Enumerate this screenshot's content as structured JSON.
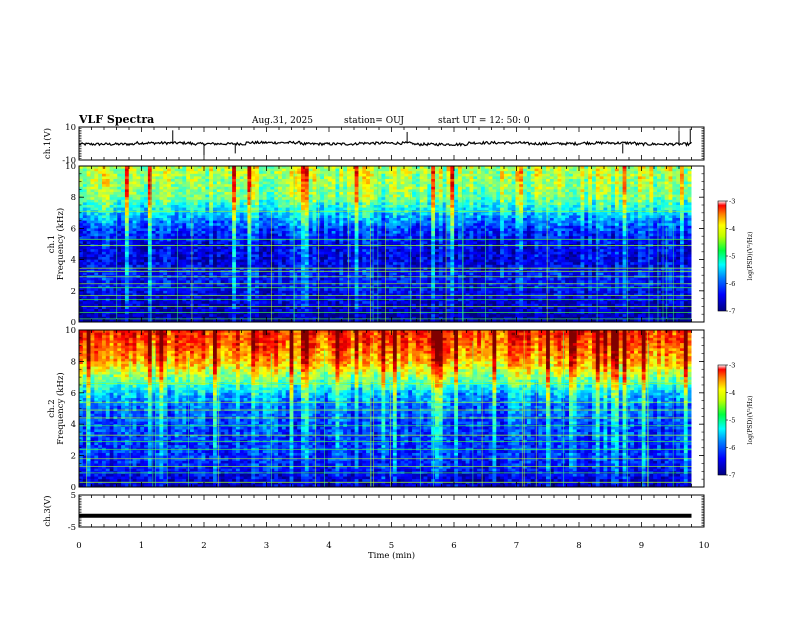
{
  "header": {
    "title": "VLF Spectra",
    "date": "Aug.31, 2025",
    "station": "station= OUJ",
    "start": "start  UT =   12: 50: 0"
  },
  "colors": {
    "low": "#0000c8",
    "mid": "#00e000",
    "high": "#e00000",
    "trace": "#000000"
  },
  "chart_data": [
    {
      "type": "line",
      "panel": "ch1-waveform",
      "ylabel": "ch.1(V)",
      "ylim": [
        -10,
        10
      ],
      "yticks": [
        "10",
        "-10"
      ],
      "xlim": [
        0,
        10
      ],
      "series": [
        {
          "values": [
            -0.4,
            0.3,
            -0.2,
            0.5,
            -0.3,
            0.2,
            -0.5,
            0.4,
            -0.1,
            0.3,
            -0.4,
            0.2
          ]
        }
      ],
      "spikes": [
        {
          "x": 1.5,
          "y": 8
        },
        {
          "x": 2.0,
          "y": -7
        },
        {
          "x": 2.5,
          "y": -6
        },
        {
          "x": 5.25,
          "y": 7
        },
        {
          "x": 8.7,
          "y": -6
        },
        {
          "x": 9.6,
          "y": 8
        },
        {
          "x": 9.78,
          "y": 9
        }
      ]
    },
    {
      "type": "heatmap",
      "panel": "ch1-spectrogram",
      "ylabel": "ch.1\nFrequency (kHz)",
      "ylim": [
        0,
        10
      ],
      "yticks": [
        "0",
        "2",
        "4",
        "6",
        "8",
        "10"
      ],
      "xlim": [
        0,
        9.8
      ],
      "colorbar": {
        "label": "log(PSD)(V²/Hz)",
        "range": [
          -7,
          -3
        ],
        "ticks": [
          "-3",
          "-4",
          "-5",
          "-6",
          "-7"
        ]
      },
      "profile_kHz_to_logPSD": [
        [
          0,
          -6.9
        ],
        [
          1,
          -6.7
        ],
        [
          2,
          -6.5
        ],
        [
          3,
          -6.4
        ],
        [
          4,
          -6.6
        ],
        [
          5,
          -6.5
        ],
        [
          6,
          -6.2
        ],
        [
          7,
          -5.6
        ],
        [
          8,
          -5.0
        ],
        [
          9,
          -4.8
        ],
        [
          10,
          -4.7
        ]
      ],
      "lines_kHz": [
        0.2,
        0.6,
        1.0,
        1.45,
        1.7,
        2.2,
        2.45,
        2.9,
        3.25,
        3.45,
        4.9,
        5.3,
        7.1
      ]
    },
    {
      "type": "heatmap",
      "panel": "ch2-spectrogram",
      "ylabel": "ch.2\nFrequency (kHz)",
      "ylim": [
        0,
        10
      ],
      "yticks": [
        "0",
        "2",
        "4",
        "6",
        "8",
        "10"
      ],
      "xlim": [
        0,
        9.8
      ],
      "colorbar": {
        "label": "log(PSD)(V²/Hz)",
        "range": [
          -7,
          -3
        ],
        "ticks": [
          "-3",
          "-4",
          "-5",
          "-6",
          "-7"
        ]
      },
      "profile_kHz_to_logPSD": [
        [
          0,
          -6.8
        ],
        [
          1,
          -6.5
        ],
        [
          2,
          -6.3
        ],
        [
          3,
          -6.3
        ],
        [
          4,
          -6.2
        ],
        [
          5,
          -6.1
        ],
        [
          6,
          -5.7
        ],
        [
          7,
          -4.9
        ],
        [
          8,
          -4.2
        ],
        [
          9,
          -3.8
        ],
        [
          10,
          -3.6
        ]
      ],
      "lines_kHz": [
        0.3,
        0.9,
        1.3,
        1.8,
        2.4,
        2.9,
        3.3,
        3.9,
        4.4,
        4.9,
        5.4,
        6.6
      ]
    },
    {
      "type": "line",
      "panel": "ch3-waveform",
      "ylabel": "ch.3(V)",
      "ylim": [
        -5,
        5
      ],
      "yticks": [
        "5",
        "-5"
      ],
      "xlim": [
        0,
        10
      ],
      "series": [
        {
          "values": [
            -1.5,
            -1.5
          ]
        }
      ],
      "xlabel": "Time (min)",
      "xticks": [
        "0",
        "1",
        "2",
        "3",
        "4",
        "5",
        "6",
        "7",
        "8",
        "9",
        "10"
      ]
    }
  ]
}
